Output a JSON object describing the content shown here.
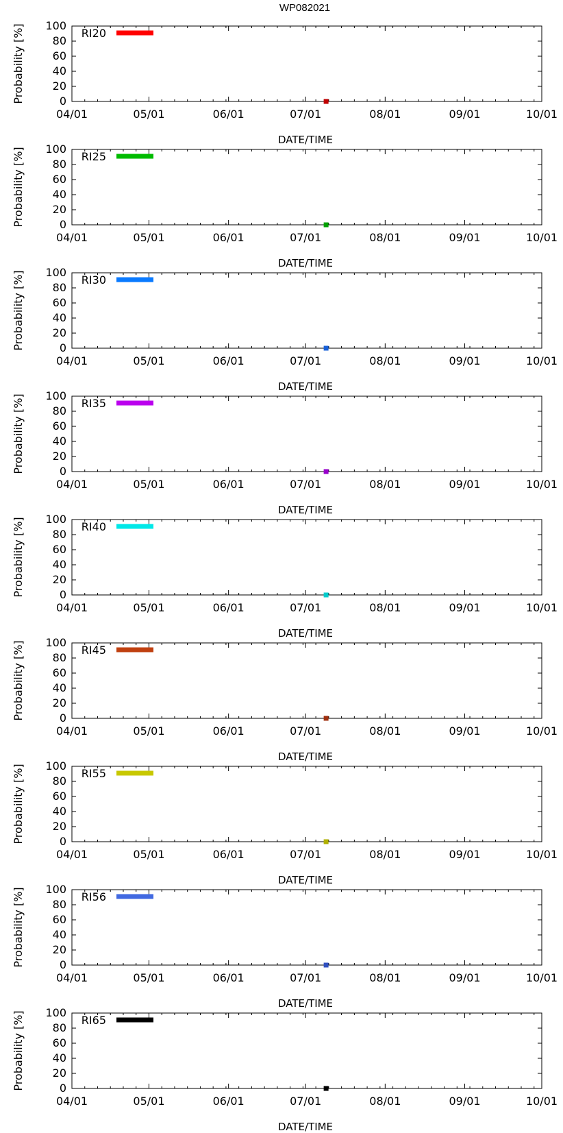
{
  "title": "WP082021",
  "chart_data": [
    {
      "type": "scatter",
      "label": "RI20",
      "color": "#ff0000",
      "marker_color": "#c00000",
      "xlabel": "DATE/TIME",
      "ylabel": "Probability [%]",
      "xticks": [
        "04/01",
        "05/01",
        "06/01",
        "07/01",
        "08/01",
        "09/01",
        "10/01"
      ],
      "yticks": [
        "0",
        "20",
        "40",
        "60",
        "80",
        "100"
      ],
      "ylim": [
        0,
        100
      ],
      "points": [
        {
          "x": "07/09",
          "y": 0
        }
      ]
    },
    {
      "type": "scatter",
      "label": "RI25",
      "color": "#00bb00",
      "marker_color": "#00a000",
      "xlabel": "DATE/TIME",
      "ylabel": "Probability [%]",
      "xticks": [
        "04/01",
        "05/01",
        "06/01",
        "07/01",
        "08/01",
        "09/01",
        "10/01"
      ],
      "yticks": [
        "0",
        "20",
        "40",
        "60",
        "80",
        "100"
      ],
      "ylim": [
        0,
        100
      ],
      "points": [
        {
          "x": "07/09",
          "y": 0
        }
      ]
    },
    {
      "type": "scatter",
      "label": "RI30",
      "color": "#0a7aff",
      "marker_color": "#1860d8",
      "xlabel": "DATE/TIME",
      "ylabel": "Probability [%]",
      "xticks": [
        "04/01",
        "05/01",
        "06/01",
        "07/01",
        "08/01",
        "09/01",
        "10/01"
      ],
      "yticks": [
        "0",
        "20",
        "40",
        "60",
        "80",
        "100"
      ],
      "ylim": [
        0,
        100
      ],
      "points": [
        {
          "x": "07/09",
          "y": 0
        }
      ]
    },
    {
      "type": "scatter",
      "label": "RI35",
      "color": "#bb00ee",
      "marker_color": "#9900cc",
      "xlabel": "DATE/TIME",
      "ylabel": "Probability [%]",
      "xticks": [
        "04/01",
        "05/01",
        "06/01",
        "07/01",
        "08/01",
        "09/01",
        "10/01"
      ],
      "yticks": [
        "0",
        "20",
        "40",
        "60",
        "80",
        "100"
      ],
      "ylim": [
        0,
        100
      ],
      "points": [
        {
          "x": "07/09",
          "y": 0
        }
      ]
    },
    {
      "type": "scatter",
      "label": "RI40",
      "color": "#00e8e8",
      "marker_color": "#00cccc",
      "xlabel": "DATE/TIME",
      "ylabel": "Probability [%]",
      "xticks": [
        "04/01",
        "05/01",
        "06/01",
        "07/01",
        "08/01",
        "09/01",
        "10/01"
      ],
      "yticks": [
        "0",
        "20",
        "40",
        "60",
        "80",
        "100"
      ],
      "ylim": [
        0,
        100
      ],
      "points": [
        {
          "x": "07/09",
          "y": 0
        }
      ]
    },
    {
      "type": "scatter",
      "label": "RI45",
      "color": "#c04010",
      "marker_color": "#a03010",
      "xlabel": "DATE/TIME",
      "ylabel": "Probability [%]",
      "xticks": [
        "04/01",
        "05/01",
        "06/01",
        "07/01",
        "08/01",
        "09/01",
        "10/01"
      ],
      "yticks": [
        "0",
        "20",
        "40",
        "60",
        "80",
        "100"
      ],
      "ylim": [
        0,
        100
      ],
      "points": [
        {
          "x": "07/09",
          "y": 0
        }
      ]
    },
    {
      "type": "scatter",
      "label": "RI55",
      "color": "#c8c800",
      "marker_color": "#b0b000",
      "xlabel": "DATE/TIME",
      "ylabel": "Probability [%]",
      "xticks": [
        "04/01",
        "05/01",
        "06/01",
        "07/01",
        "08/01",
        "09/01",
        "10/01"
      ],
      "yticks": [
        "0",
        "20",
        "40",
        "60",
        "80",
        "100"
      ],
      "ylim": [
        0,
        100
      ],
      "points": [
        {
          "x": "07/09",
          "y": 0
        }
      ]
    },
    {
      "type": "scatter",
      "label": "RI56",
      "color": "#4169e1",
      "marker_color": "#3050c0",
      "xlabel": "DATE/TIME",
      "ylabel": "Probability [%]",
      "xticks": [
        "04/01",
        "05/01",
        "06/01",
        "07/01",
        "08/01",
        "09/01",
        "10/01"
      ],
      "yticks": [
        "0",
        "20",
        "40",
        "60",
        "80",
        "100"
      ],
      "ylim": [
        0,
        100
      ],
      "points": [
        {
          "x": "07/09",
          "y": 0
        }
      ]
    },
    {
      "type": "scatter",
      "label": "RI65",
      "color": "#000000",
      "marker_color": "#000000",
      "xlabel": "DATE/TIME",
      "ylabel": "Probability [%]",
      "xticks": [
        "04/01",
        "05/01",
        "06/01",
        "07/01",
        "08/01",
        "09/01",
        "10/01"
      ],
      "yticks": [
        "0",
        "20",
        "40",
        "60",
        "80",
        "100"
      ],
      "ylim": [
        0,
        100
      ],
      "points": [
        {
          "x": "07/09",
          "y": 0
        }
      ]
    }
  ]
}
